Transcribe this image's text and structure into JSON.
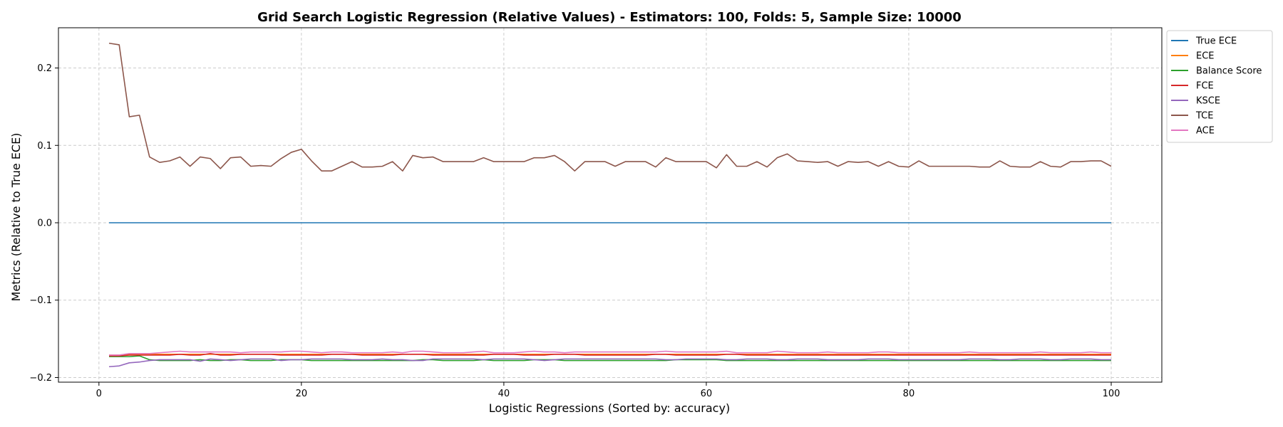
{
  "chart_data": {
    "type": "line",
    "title": "Grid Search Logistic Regression (Relative Values) - Estimators: 100, Folds: 5, Sample Size: 10000",
    "xlabel": "Logistic Regressions (Sorted by: accuracy)",
    "ylabel": "Metrics (Relative to True ECE)",
    "xlim": [
      -4,
      105
    ],
    "ylim": [
      -0.206,
      0.252
    ],
    "xticks": [
      0,
      20,
      40,
      60,
      80,
      100
    ],
    "xtick_labels": [
      "0",
      "20",
      "40",
      "60",
      "80",
      "100"
    ],
    "yticks": [
      -0.2,
      -0.1,
      0.0,
      0.1,
      0.2
    ],
    "ytick_labels": [
      "−0.2",
      "−0.1",
      "0.0",
      "0.1",
      "0.2"
    ],
    "grid": true,
    "legend_position": "outside-top-right",
    "x_start": 1,
    "series": [
      {
        "name": "True ECE",
        "color": "#1f77b4",
        "values": [
          0,
          0,
          0,
          0,
          0,
          0,
          0,
          0,
          0,
          0,
          0,
          0,
          0,
          0,
          0,
          0,
          0,
          0,
          0,
          0,
          0,
          0,
          0,
          0,
          0,
          0,
          0,
          0,
          0,
          0,
          0,
          0,
          0,
          0,
          0,
          0,
          0,
          0,
          0,
          0,
          0,
          0,
          0,
          0,
          0,
          0,
          0,
          0,
          0,
          0,
          0,
          0,
          0,
          0,
          0,
          0,
          0,
          0,
          0,
          0,
          0,
          0,
          0,
          0,
          0,
          0,
          0,
          0,
          0,
          0,
          0,
          0,
          0,
          0,
          0,
          0,
          0,
          0,
          0,
          0,
          0,
          0,
          0,
          0,
          0,
          0,
          0,
          0,
          0,
          0,
          0,
          0,
          0,
          0,
          0,
          0,
          0,
          0,
          0,
          0
        ]
      },
      {
        "name": "ECE",
        "color": "#ff7f0e",
        "values": [
          -0.171,
          -0.171,
          -0.17,
          -0.17,
          -0.17,
          -0.17,
          -0.17,
          -0.17,
          -0.17,
          -0.17,
          -0.17,
          -0.17,
          -0.17,
          -0.17,
          -0.17,
          -0.17,
          -0.17,
          -0.17,
          -0.17,
          -0.17,
          -0.17,
          -0.17,
          -0.17,
          -0.17,
          -0.17,
          -0.17,
          -0.17,
          -0.17,
          -0.17,
          -0.17,
          -0.17,
          -0.17,
          -0.17,
          -0.17,
          -0.17,
          -0.17,
          -0.17,
          -0.17,
          -0.17,
          -0.17,
          -0.17,
          -0.17,
          -0.17,
          -0.17,
          -0.17,
          -0.17,
          -0.17,
          -0.17,
          -0.17,
          -0.17,
          -0.17,
          -0.17,
          -0.17,
          -0.17,
          -0.17,
          -0.17,
          -0.17,
          -0.17,
          -0.17,
          -0.17,
          -0.17,
          -0.17,
          -0.17,
          -0.17,
          -0.17,
          -0.17,
          -0.17,
          -0.17,
          -0.17,
          -0.17,
          -0.17,
          -0.17,
          -0.17,
          -0.17,
          -0.17,
          -0.17,
          -0.17,
          -0.17,
          -0.17,
          -0.17,
          -0.17,
          -0.17,
          -0.17,
          -0.17,
          -0.17,
          -0.17,
          -0.17,
          -0.17,
          -0.17,
          -0.17,
          -0.17,
          -0.17,
          -0.17,
          -0.17,
          -0.17,
          -0.17,
          -0.17,
          -0.17,
          -0.17,
          -0.17
        ]
      },
      {
        "name": "Balance Score",
        "color": "#2ca02c",
        "values": [
          -0.173,
          -0.173,
          -0.173,
          -0.172,
          -0.177,
          -0.178,
          -0.178,
          -0.178,
          -0.178,
          -0.177,
          -0.178,
          -0.178,
          -0.177,
          -0.177,
          -0.178,
          -0.178,
          -0.178,
          -0.177,
          -0.177,
          -0.177,
          -0.178,
          -0.178,
          -0.178,
          -0.178,
          -0.178,
          -0.178,
          -0.178,
          -0.178,
          -0.178,
          -0.178,
          -0.178,
          -0.177,
          -0.177,
          -0.178,
          -0.178,
          -0.178,
          -0.178,
          -0.177,
          -0.178,
          -0.178,
          -0.178,
          -0.178,
          -0.177,
          -0.177,
          -0.177,
          -0.178,
          -0.178,
          -0.178,
          -0.178,
          -0.178,
          -0.178,
          -0.178,
          -0.178,
          -0.178,
          -0.178,
          -0.178,
          -0.177,
          -0.177,
          -0.177,
          -0.177,
          -0.177,
          -0.178,
          -0.178,
          -0.178,
          -0.178,
          -0.178,
          -0.178,
          -0.178,
          -0.178,
          -0.178,
          -0.178,
          -0.178,
          -0.178,
          -0.178,
          -0.178,
          -0.178,
          -0.178,
          -0.178,
          -0.178,
          -0.178,
          -0.178,
          -0.178,
          -0.178,
          -0.178,
          -0.178,
          -0.178,
          -0.178,
          -0.178,
          -0.178,
          -0.178,
          -0.178,
          -0.178,
          -0.178,
          -0.178,
          -0.178,
          -0.178,
          -0.178,
          -0.178,
          -0.178,
          -0.178
        ]
      },
      {
        "name": "FCE",
        "color": "#d62728",
        "values": [
          -0.172,
          -0.172,
          -0.171,
          -0.171,
          -0.171,
          -0.171,
          -0.171,
          -0.17,
          -0.171,
          -0.171,
          -0.169,
          -0.171,
          -0.171,
          -0.17,
          -0.17,
          -0.17,
          -0.17,
          -0.171,
          -0.171,
          -0.171,
          -0.171,
          -0.171,
          -0.17,
          -0.17,
          -0.17,
          -0.171,
          -0.171,
          -0.171,
          -0.171,
          -0.17,
          -0.17,
          -0.17,
          -0.171,
          -0.171,
          -0.171,
          -0.171,
          -0.171,
          -0.171,
          -0.17,
          -0.17,
          -0.17,
          -0.171,
          -0.171,
          -0.171,
          -0.17,
          -0.17,
          -0.17,
          -0.171,
          -0.171,
          -0.171,
          -0.171,
          -0.171,
          -0.171,
          -0.171,
          -0.17,
          -0.17,
          -0.171,
          -0.171,
          -0.171,
          -0.171,
          -0.171,
          -0.17,
          -0.17,
          -0.171,
          -0.171,
          -0.171,
          -0.171,
          -0.171,
          -0.171,
          -0.171,
          -0.171,
          -0.171,
          -0.171,
          -0.171,
          -0.171,
          -0.171,
          -0.171,
          -0.171,
          -0.171,
          -0.171,
          -0.171,
          -0.171,
          -0.171,
          -0.171,
          -0.171,
          -0.171,
          -0.171,
          -0.171,
          -0.171,
          -0.171,
          -0.171,
          -0.171,
          -0.171,
          -0.171,
          -0.171,
          -0.171,
          -0.171,
          -0.171,
          -0.171,
          -0.171
        ]
      },
      {
        "name": "KSCE",
        "color": "#9467bd",
        "values": [
          -0.186,
          -0.185,
          -0.181,
          -0.18,
          -0.178,
          -0.177,
          -0.177,
          -0.177,
          -0.177,
          -0.179,
          -0.176,
          -0.177,
          -0.178,
          -0.177,
          -0.176,
          -0.176,
          -0.176,
          -0.178,
          -0.177,
          -0.177,
          -0.176,
          -0.176,
          -0.176,
          -0.176,
          -0.177,
          -0.177,
          -0.177,
          -0.176,
          -0.177,
          -0.177,
          -0.178,
          -0.178,
          -0.176,
          -0.176,
          -0.176,
          -0.176,
          -0.176,
          -0.177,
          -0.176,
          -0.176,
          -0.176,
          -0.176,
          -0.177,
          -0.178,
          -0.177,
          -0.176,
          -0.176,
          -0.176,
          -0.176,
          -0.176,
          -0.176,
          -0.176,
          -0.176,
          -0.176,
          -0.176,
          -0.177,
          -0.177,
          -0.176,
          -0.176,
          -0.176,
          -0.176,
          -0.177,
          -0.177,
          -0.176,
          -0.176,
          -0.176,
          -0.177,
          -0.177,
          -0.176,
          -0.176,
          -0.176,
          -0.177,
          -0.177,
          -0.177,
          -0.177,
          -0.176,
          -0.176,
          -0.176,
          -0.177,
          -0.177,
          -0.177,
          -0.177,
          -0.177,
          -0.177,
          -0.177,
          -0.176,
          -0.176,
          -0.176,
          -0.177,
          -0.177,
          -0.176,
          -0.176,
          -0.176,
          -0.177,
          -0.177,
          -0.176,
          -0.176,
          -0.176,
          -0.177,
          -0.177
        ]
      },
      {
        "name": "TCE",
        "color": "#8c564b",
        "values": [
          0.232,
          0.23,
          0.137,
          0.139,
          0.085,
          0.078,
          0.08,
          0.085,
          0.073,
          0.085,
          0.083,
          0.07,
          0.084,
          0.085,
          0.073,
          0.074,
          0.073,
          0.083,
          0.091,
          0.095,
          0.08,
          0.067,
          0.067,
          0.073,
          0.079,
          0.072,
          0.072,
          0.073,
          0.079,
          0.067,
          0.087,
          0.084,
          0.085,
          0.079,
          0.079,
          0.079,
          0.079,
          0.084,
          0.079,
          0.079,
          0.079,
          0.079,
          0.084,
          0.084,
          0.087,
          0.079,
          0.067,
          0.079,
          0.079,
          0.079,
          0.073,
          0.079,
          0.079,
          0.079,
          0.072,
          0.084,
          0.079,
          0.079,
          0.079,
          0.079,
          0.071,
          0.088,
          0.073,
          0.073,
          0.079,
          0.072,
          0.084,
          0.089,
          0.08,
          0.079,
          0.078,
          0.079,
          0.073,
          0.079,
          0.078,
          0.079,
          0.073,
          0.079,
          0.073,
          0.072,
          0.08,
          0.073,
          0.073,
          0.073,
          0.073,
          0.073,
          0.072,
          0.072,
          0.08,
          0.073,
          0.072,
          0.072,
          0.079,
          0.073,
          0.072,
          0.079,
          0.079,
          0.08,
          0.08,
          0.073
        ]
      },
      {
        "name": "ACE",
        "color": "#e377c2",
        "values": [
          -0.171,
          -0.171,
          -0.169,
          -0.169,
          -0.169,
          -0.168,
          -0.167,
          -0.166,
          -0.167,
          -0.167,
          -0.167,
          -0.167,
          -0.167,
          -0.168,
          -0.167,
          -0.167,
          -0.167,
          -0.167,
          -0.166,
          -0.166,
          -0.167,
          -0.168,
          -0.167,
          -0.167,
          -0.168,
          -0.168,
          -0.168,
          -0.168,
          -0.167,
          -0.168,
          -0.166,
          -0.166,
          -0.167,
          -0.168,
          -0.168,
          -0.168,
          -0.167,
          -0.166,
          -0.168,
          -0.168,
          -0.168,
          -0.167,
          -0.166,
          -0.167,
          -0.167,
          -0.168,
          -0.167,
          -0.167,
          -0.167,
          -0.167,
          -0.167,
          -0.167,
          -0.167,
          -0.167,
          -0.167,
          -0.166,
          -0.167,
          -0.167,
          -0.167,
          -0.167,
          -0.167,
          -0.166,
          -0.168,
          -0.168,
          -0.168,
          -0.168,
          -0.166,
          -0.167,
          -0.168,
          -0.168,
          -0.168,
          -0.167,
          -0.168,
          -0.168,
          -0.168,
          -0.168,
          -0.167,
          -0.167,
          -0.168,
          -0.168,
          -0.168,
          -0.168,
          -0.168,
          -0.168,
          -0.168,
          -0.167,
          -0.168,
          -0.168,
          -0.168,
          -0.168,
          -0.168,
          -0.168,
          -0.167,
          -0.168,
          -0.168,
          -0.168,
          -0.168,
          -0.167,
          -0.168,
          -0.168
        ]
      }
    ]
  }
}
